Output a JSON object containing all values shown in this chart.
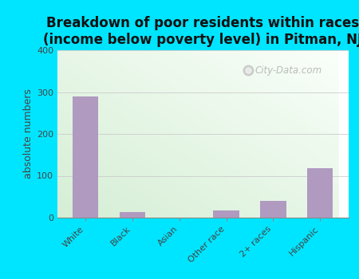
{
  "title": "Breakdown of poor residents within races\n(income below poverty level) in Pitman, NJ",
  "categories": [
    "White",
    "Black",
    "Asian",
    "Other race",
    "2+ races",
    "Hispanic"
  ],
  "values": [
    289,
    13,
    0,
    18,
    40,
    119
  ],
  "bar_color": "#b09ac0",
  "ylabel": "absolute numbers",
  "ylim": [
    0,
    400
  ],
  "yticks": [
    0,
    100,
    200,
    300,
    400
  ],
  "outer_background": "#00e5ff",
  "grid_color": "#dddddd",
  "title_fontsize": 12,
  "axis_fontsize": 9,
  "tick_fontsize": 8,
  "watermark": "City-Data.com"
}
